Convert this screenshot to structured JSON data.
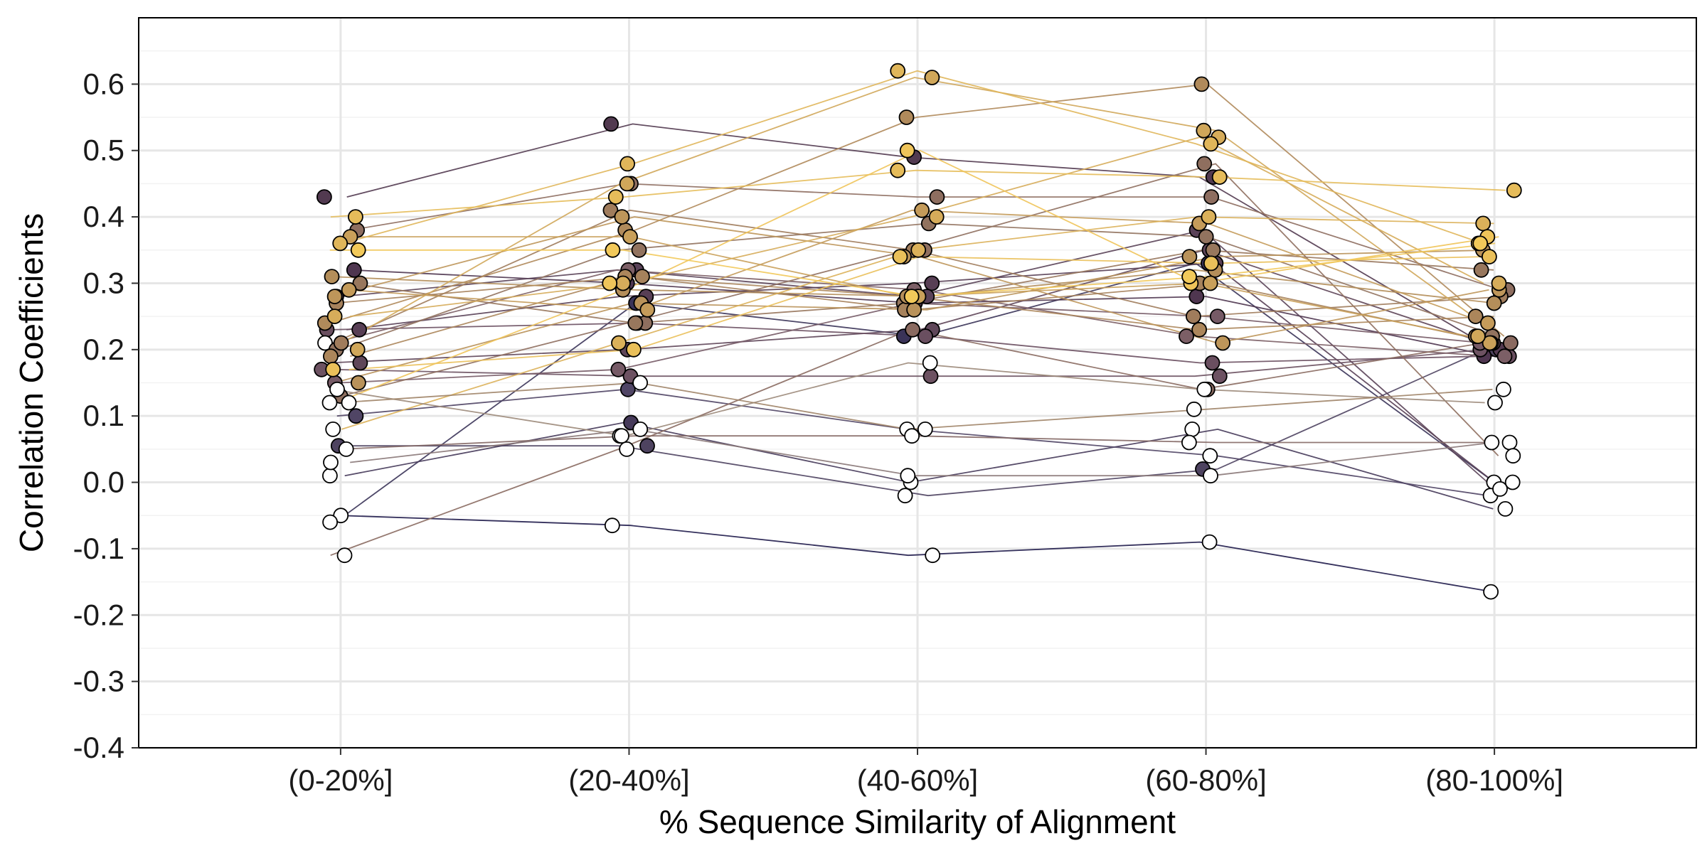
{
  "chart_data": {
    "type": "scatter",
    "xlabel": "% Sequence Similarity of Alignment",
    "ylabel": "Correlation Coefficients",
    "categories": [
      "(0-20%]",
      "(20-40%]",
      "(40-60%]",
      "(60-80%]",
      "(80-100%]"
    ],
    "ylim": [
      -0.4,
      0.7
    ],
    "yticks": [
      -0.4,
      -0.3,
      -0.2,
      -0.1,
      0.0,
      0.1,
      0.2,
      0.3,
      0.4,
      0.5,
      0.6
    ],
    "ytick_labels": [
      "-0.4",
      "-0.3",
      "-0.2",
      "-0.1",
      "0.0",
      "0.1",
      "0.2",
      "0.3",
      "0.4",
      "0.5",
      "0.6"
    ],
    "grid": true,
    "legend": "none",
    "colors": {
      "not_significant_fill": "#ffffff",
      "gradient_low": "#1e1a4a",
      "gradient_mid_dark": "#4a3052",
      "gradient_mid": "#a88458",
      "gradient_high": "#f2c95a",
      "grid": "#e6e6e6",
      "axis": "#000000"
    },
    "note_points": "Each series spans the five categories; points drawn with jitter around category center. Filled points are colored by series; white points indicate non-significant values.",
    "series": [
      {
        "values": [
          -0.05,
          -0.065,
          -0.11,
          -0.09,
          -0.165
        ],
        "color": "#1e1a4a",
        "sig": [
          0,
          0,
          0,
          0,
          0
        ]
      },
      {
        "values": [
          -0.06,
          0.27,
          0.22,
          0.33,
          0.0
        ],
        "color": "#3a3358",
        "sig": [
          0,
          1,
          1,
          1,
          0
        ]
      },
      {
        "values": [
          0.055,
          0.055,
          -0.02,
          0.02,
          0.2
        ],
        "color": "#4e4360",
        "sig": [
          1,
          1,
          0,
          1,
          1
        ]
      },
      {
        "values": [
          0.01,
          0.09,
          0.0,
          0.08,
          -0.04
        ],
        "color": "#463a5a",
        "sig": [
          0,
          1,
          0,
          0,
          0
        ]
      },
      {
        "values": [
          0.1,
          0.14,
          0.08,
          0.04,
          -0.02
        ],
        "color": "#504565",
        "sig": [
          1,
          1,
          0,
          0,
          0
        ]
      },
      {
        "values": [
          0.43,
          0.54,
          0.49,
          0.46,
          0.2
        ],
        "color": "#523a50",
        "sig": [
          1,
          1,
          1,
          1,
          1
        ]
      },
      {
        "values": [
          0.32,
          0.3,
          0.27,
          0.28,
          0.19
        ],
        "color": "#4f3650",
        "sig": [
          1,
          1,
          1,
          1,
          1
        ]
      },
      {
        "values": [
          0.23,
          0.28,
          0.3,
          0.33,
          -0.01
        ],
        "color": "#583f55",
        "sig": [
          1,
          1,
          1,
          1,
          0
        ]
      },
      {
        "values": [
          0.28,
          0.32,
          0.28,
          0.38,
          0.0
        ],
        "color": "#5a4258",
        "sig": [
          1,
          1,
          1,
          1,
          0
        ]
      },
      {
        "values": [
          0.18,
          0.2,
          0.23,
          0.35,
          0.21
        ],
        "color": "#5f4659",
        "sig": [
          1,
          1,
          1,
          1,
          1
        ]
      },
      {
        "values": [
          0.23,
          0.24,
          0.22,
          0.18,
          0.19
        ],
        "color": "#6a4f60",
        "sig": [
          1,
          1,
          1,
          1,
          1
        ]
      },
      {
        "values": [
          0.17,
          0.16,
          0.16,
          0.16,
          0.2
        ],
        "color": "#6d5262",
        "sig": [
          1,
          1,
          1,
          1,
          1
        ]
      },
      {
        "values": [
          0.15,
          0.17,
          0.27,
          0.25,
          0.21
        ],
        "color": "#765a66",
        "sig": [
          1,
          1,
          1,
          1,
          1
        ]
      },
      {
        "values": [
          0.21,
          0.32,
          0.29,
          0.22,
          0.19
        ],
        "color": "#7c5f66",
        "sig": [
          0,
          1,
          1,
          1,
          1
        ]
      },
      {
        "values": [
          0.05,
          0.07,
          0.07,
          0.06,
          0.06
        ],
        "color": "#846865",
        "sig": [
          0,
          0,
          0,
          0,
          0
        ]
      },
      {
        "values": [
          -0.11,
          0.05,
          0.23,
          0.14,
          0.21
        ],
        "color": "#8a6a60",
        "sig": [
          0,
          0,
          1,
          1,
          1
        ]
      },
      {
        "values": [
          0.13,
          0.24,
          0.35,
          0.48,
          0.04
        ],
        "color": "#8f6f5f",
        "sig": [
          1,
          1,
          1,
          1,
          0
        ]
      },
      {
        "values": [
          0.38,
          0.45,
          0.43,
          0.43,
          0.29
        ],
        "color": "#8e6e60",
        "sig": [
          1,
          1,
          1,
          1,
          1
        ]
      },
      {
        "values": [
          0.2,
          0.35,
          0.39,
          0.37,
          0.22
        ],
        "color": "#92735f",
        "sig": [
          1,
          1,
          1,
          1,
          1
        ]
      },
      {
        "values": [
          0.3,
          0.24,
          0.27,
          0.35,
          0.32
        ],
        "color": "#98775d",
        "sig": [
          1,
          1,
          1,
          1,
          1
        ]
      },
      {
        "values": [
          0.21,
          0.41,
          0.35,
          0.25,
          0.28
        ],
        "color": "#a07c5c",
        "sig": [
          1,
          1,
          1,
          1,
          1
        ]
      },
      {
        "values": [
          0.27,
          0.31,
          0.26,
          0.3,
          0.21
        ],
        "color": "#a6825c",
        "sig": [
          1,
          1,
          1,
          1,
          1
        ]
      },
      {
        "values": [
          0.19,
          0.31,
          0.28,
          0.23,
          0.25
        ],
        "color": "#ac865b",
        "sig": [
          1,
          1,
          1,
          1,
          1
        ]
      },
      {
        "values": [
          0.24,
          0.38,
          0.55,
          0.6,
          0.22
        ],
        "color": "#b08a5b",
        "sig": [
          1,
          1,
          1,
          1,
          1
        ]
      },
      {
        "values": [
          0.31,
          0.29,
          0.28,
          0.32,
          0.27
        ],
        "color": "#b48e5a",
        "sig": [
          1,
          1,
          1,
          1,
          1
        ]
      },
      {
        "values": [
          0.15,
          0.27,
          0.26,
          0.34,
          0.35
        ],
        "color": "#b9925a",
        "sig": [
          1,
          1,
          1,
          1,
          1
        ]
      },
      {
        "values": [
          0.28,
          0.4,
          0.34,
          0.21,
          0.29
        ],
        "color": "#be965a",
        "sig": [
          1,
          1,
          1,
          1,
          1
        ]
      },
      {
        "values": [
          0.29,
          0.26,
          0.41,
          0.39,
          0.24
        ],
        "color": "#c49b5a",
        "sig": [
          1,
          1,
          1,
          1,
          1
        ]
      },
      {
        "values": [
          0.37,
          0.37,
          0.28,
          0.3,
          0.21
        ],
        "color": "#c9a05a",
        "sig": [
          1,
          1,
          1,
          1,
          1
        ]
      },
      {
        "values": [
          0.2,
          0.45,
          0.61,
          0.53,
          0.22
        ],
        "color": "#d0a75a",
        "sig": [
          1,
          1,
          1,
          1,
          1
        ]
      },
      {
        "values": [
          0.25,
          0.3,
          0.4,
          0.52,
          0.3
        ],
        "color": "#d6ac5a",
        "sig": [
          1,
          1,
          1,
          1,
          1
        ]
      },
      {
        "values": [
          0.08,
          0.21,
          0.35,
          0.4,
          0.39
        ],
        "color": "#dbb15a",
        "sig": [
          0,
          1,
          1,
          1,
          1
        ]
      },
      {
        "values": [
          0.36,
          0.48,
          0.62,
          0.51,
          0.36
        ],
        "color": "#e0b65a",
        "sig": [
          1,
          1,
          1,
          1,
          1
        ]
      },
      {
        "values": [
          0.4,
          0.43,
          0.47,
          0.46,
          0.44
        ],
        "color": "#e6bc5a",
        "sig": [
          1,
          1,
          1,
          1,
          1
        ]
      },
      {
        "values": [
          0.17,
          0.2,
          0.34,
          0.33,
          0.34
        ],
        "color": "#eac05a",
        "sig": [
          1,
          1,
          1,
          1,
          1
        ]
      },
      {
        "values": [
          0.12,
          0.3,
          0.5,
          0.3,
          0.37
        ],
        "color": "#efc45a",
        "sig": [
          0,
          1,
          1,
          1,
          1
        ]
      },
      {
        "values": [
          0.35,
          0.35,
          0.28,
          0.31,
          0.36
        ],
        "color": "#f2c95a",
        "sig": [
          1,
          1,
          1,
          1,
          1
        ]
      },
      {
        "values": [
          0.14,
          0.07,
          0.18,
          0.14,
          0.12
        ],
        "color": "#9c8a7a",
        "sig": [
          0,
          0,
          0,
          0,
          0
        ]
      },
      {
        "values": [
          0.03,
          0.08,
          0.01,
          0.01,
          0.06
        ],
        "color": "#8a7878",
        "sig": [
          0,
          0,
          0,
          0,
          0
        ]
      },
      {
        "values": [
          0.12,
          0.15,
          0.08,
          0.11,
          0.14
        ],
        "color": "#a08468",
        "sig": [
          0,
          0,
          0,
          0,
          0
        ]
      }
    ]
  }
}
